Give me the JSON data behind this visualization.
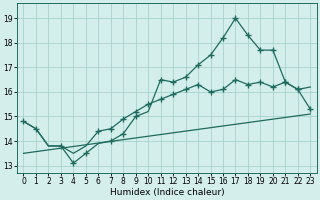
{
  "xlabel": "Humidex (Indice chaleur)",
  "bg_color": "#d4eeeb",
  "grid_color": "#9ecdc7",
  "line_color": "#1e6b5e",
  "xlim": [
    -0.5,
    23.5
  ],
  "ylim": [
    12.7,
    19.6
  ],
  "yticks": [
    13,
    14,
    15,
    16,
    17,
    18,
    19
  ],
  "xticks": [
    0,
    1,
    2,
    3,
    4,
    5,
    6,
    7,
    8,
    9,
    10,
    11,
    12,
    13,
    14,
    15,
    16,
    17,
    18,
    19,
    20,
    21,
    22,
    23
  ],
  "straight_line_x": [
    0,
    23
  ],
  "straight_line_y": [
    13.5,
    15.1
  ],
  "main_line_x": [
    0,
    1,
    2,
    3,
    4,
    5,
    6,
    7,
    8,
    9,
    10,
    11,
    12,
    13,
    14,
    15,
    16,
    17,
    18,
    19,
    20,
    21,
    22,
    23
  ],
  "main_line_y": [
    14.8,
    14.5,
    13.8,
    13.8,
    13.1,
    13.5,
    13.9,
    14.0,
    14.3,
    15.0,
    15.2,
    16.5,
    16.4,
    16.6,
    17.1,
    17.5,
    18.2,
    19.0,
    18.3,
    17.7,
    17.7,
    16.4,
    16.1,
    16.2
  ],
  "main_markers_x": [
    0,
    1,
    3,
    4,
    5,
    7,
    8,
    9,
    11,
    12,
    13,
    14,
    15,
    16,
    17,
    18,
    19,
    20,
    21,
    22
  ],
  "main_markers_y": [
    14.8,
    14.5,
    13.8,
    13.1,
    13.5,
    14.0,
    14.3,
    15.0,
    16.5,
    16.4,
    16.6,
    17.1,
    17.5,
    18.2,
    19.0,
    18.3,
    17.7,
    17.7,
    16.4,
    16.1
  ],
  "upper_line_x": [
    0,
    1,
    2,
    3,
    4,
    5,
    6,
    7,
    8,
    9,
    10,
    11,
    12,
    13,
    14,
    15,
    16,
    17,
    18,
    19,
    20,
    21,
    22,
    23
  ],
  "upper_line_y": [
    14.8,
    14.5,
    13.8,
    13.8,
    13.5,
    13.8,
    14.4,
    14.5,
    14.9,
    15.2,
    15.5,
    15.7,
    15.9,
    16.1,
    16.3,
    16.0,
    16.1,
    16.5,
    16.3,
    16.4,
    16.2,
    16.4,
    16.1,
    15.3
  ],
  "upper_markers_x": [
    6,
    7,
    8,
    9,
    10,
    11,
    12,
    13,
    14,
    15,
    16,
    17,
    18,
    19,
    20,
    21,
    22,
    23
  ],
  "upper_markers_y": [
    14.4,
    14.5,
    14.9,
    15.2,
    15.5,
    15.7,
    15.9,
    16.1,
    16.3,
    16.0,
    16.1,
    16.5,
    16.3,
    16.4,
    16.2,
    16.4,
    16.1,
    15.3
  ]
}
